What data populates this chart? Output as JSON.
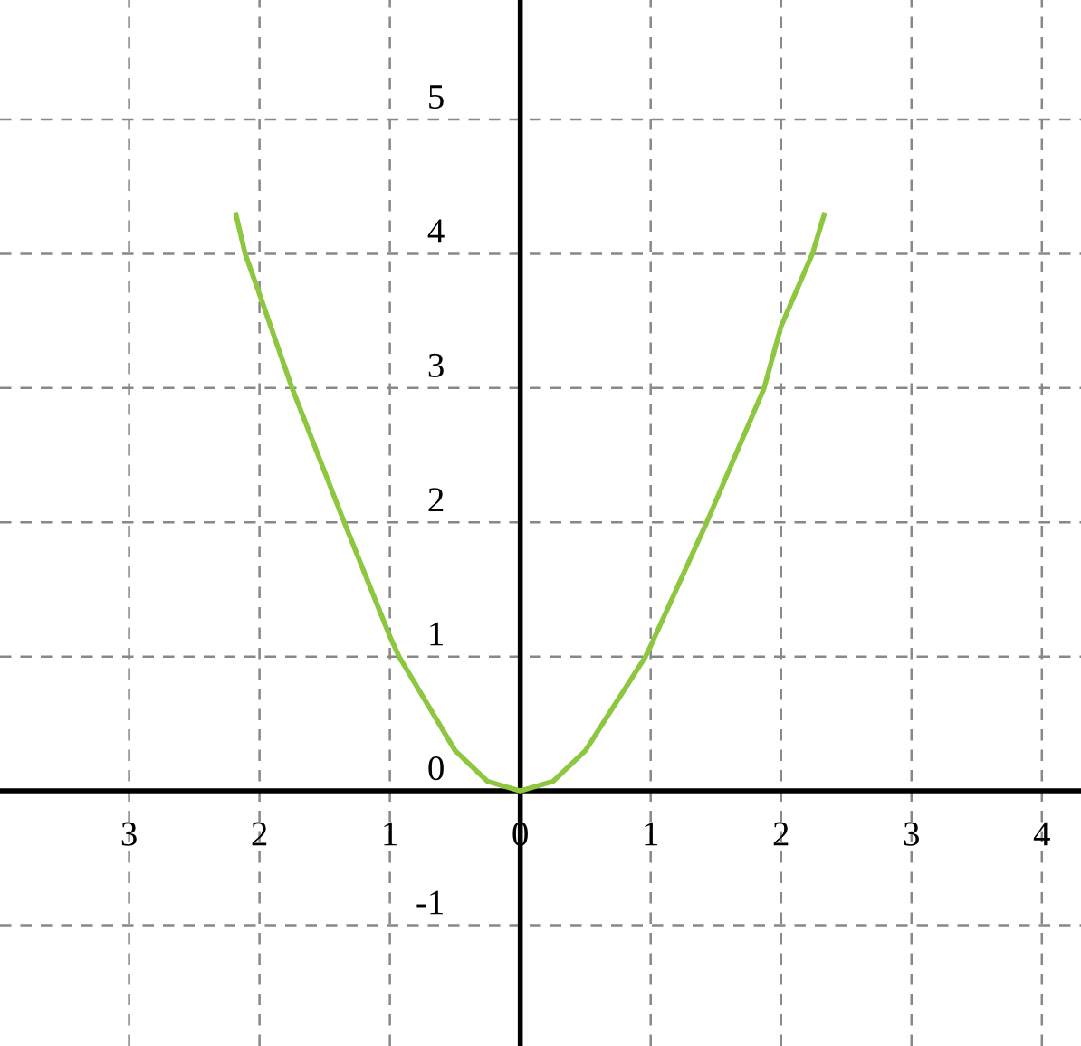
{
  "chart_data": {
    "type": "line",
    "x": [
      -2.18,
      -2.11,
      -2.0,
      -1.75,
      -1.35,
      -1.0,
      -0.93,
      -0.5,
      -0.25,
      0,
      0.25,
      0.5,
      0.96,
      1.0,
      1.43,
      1.87,
      2.0,
      2.24,
      2.33
    ],
    "series": [
      {
        "color": "#8dc63f",
        "values": [
          4.29,
          4.0,
          3.7,
          3.0,
          2.0,
          1.15,
          1.0,
          0.3,
          0.07,
          0,
          0.07,
          0.3,
          1.0,
          1.08,
          2.0,
          3.0,
          3.46,
          4.0,
          4.29
        ]
      }
    ],
    "xlim": [
      -3.99,
      4.3
    ],
    "ylim": [
      -1.9,
      5.89
    ],
    "xticks": [
      {
        "value": -3,
        "label": "3"
      },
      {
        "value": -2,
        "label": "2"
      },
      {
        "value": -1,
        "label": "1"
      },
      0,
      1,
      2,
      3,
      4
    ],
    "yticks": [
      {
        "value": -1,
        "label": "-1"
      },
      0,
      1,
      2,
      3,
      4,
      5
    ],
    "grid": true
  }
}
